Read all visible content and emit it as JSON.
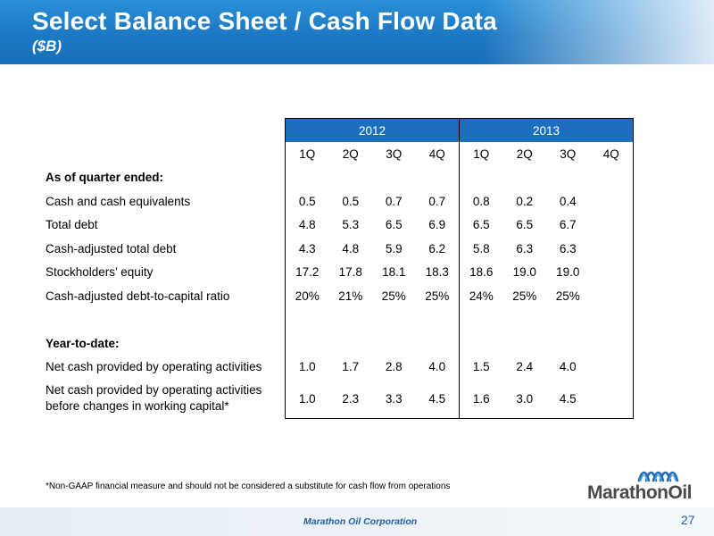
{
  "header": {
    "title": "Select Balance Sheet / Cash Flow Data",
    "subtitle": "($B)"
  },
  "table": {
    "years": [
      "2012",
      "2013"
    ],
    "quarters": [
      "1Q",
      "2Q",
      "3Q",
      "4Q",
      "1Q",
      "2Q",
      "3Q",
      "4Q"
    ],
    "section1": "As of quarter ended:",
    "section2": "Year-to-date:",
    "rows": [
      {
        "label": "Cash and cash equivalents",
        "values": [
          "0.5",
          "0.5",
          "0.7",
          "0.7",
          "0.8",
          "0.2",
          "0.4",
          ""
        ]
      },
      {
        "label": "Total debt",
        "values": [
          "4.8",
          "5.3",
          "6.5",
          "6.9",
          "6.5",
          "6.5",
          "6.7",
          ""
        ]
      },
      {
        "label": "Cash-adjusted total debt",
        "values": [
          "4.3",
          "4.8",
          "5.9",
          "6.2",
          "5.8",
          "6.3",
          "6.3",
          ""
        ]
      },
      {
        "label": "Stockholders’ equity",
        "values": [
          "17.2",
          "17.8",
          "18.1",
          "18.3",
          "18.6",
          "19.0",
          "19.0",
          ""
        ]
      },
      {
        "label": "Cash-adjusted debt-to-capital ratio",
        "values": [
          "20%",
          "21%",
          "25%",
          "25%",
          "24%",
          "25%",
          "25%",
          ""
        ]
      },
      {
        "label": "Net cash provided by operating activities",
        "values": [
          "1.0",
          "1.7",
          "2.8",
          "4.0",
          "1.5",
          "2.4",
          "4.0",
          ""
        ]
      },
      {
        "label_line1": "Net cash provided by operating activities",
        "label_line2": "before changes in working capital*",
        "values": [
          "1.0",
          "2.3",
          "3.3",
          "4.5",
          "1.6",
          "3.0",
          "4.5",
          ""
        ]
      }
    ]
  },
  "footnote": "*Non-GAAP financial measure and should not be considered a substitute for cash flow from operations",
  "footer": {
    "company": "Marathon Oil Corporation",
    "page_number": "27"
  },
  "logo": {
    "text": "MarathonOil",
    "color": "#1f6fba"
  }
}
